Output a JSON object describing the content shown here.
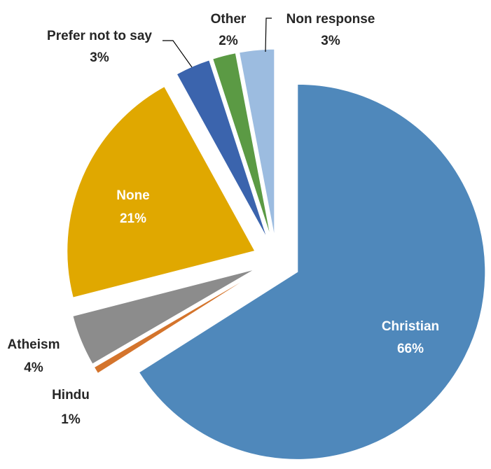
{
  "chart_data": {
    "type": "pie",
    "title": "",
    "slices": [
      {
        "label": "Christian",
        "pct_label": "66%",
        "value": 66,
        "color": "#4f88bb"
      },
      {
        "label": "Hindu",
        "pct_label": "1%",
        "value": 0.6,
        "color": "#d4742c"
      },
      {
        "label": "Atheism",
        "pct_label": "4%",
        "value": 4.4,
        "color": "#8c8c8c"
      },
      {
        "label": "None",
        "pct_label": "21%",
        "value": 21,
        "color": "#e0a800"
      },
      {
        "label": "Prefer not to say",
        "pct_label": "3%",
        "value": 3,
        "color": "#3b64ad"
      },
      {
        "label": "Other",
        "pct_label": "2%",
        "value": 2,
        "color": "#5b9a44"
      },
      {
        "label": "Non response",
        "pct_label": "3%",
        "value": 3,
        "color": "#9cbce0"
      }
    ],
    "legend": "none",
    "exploded": true
  }
}
